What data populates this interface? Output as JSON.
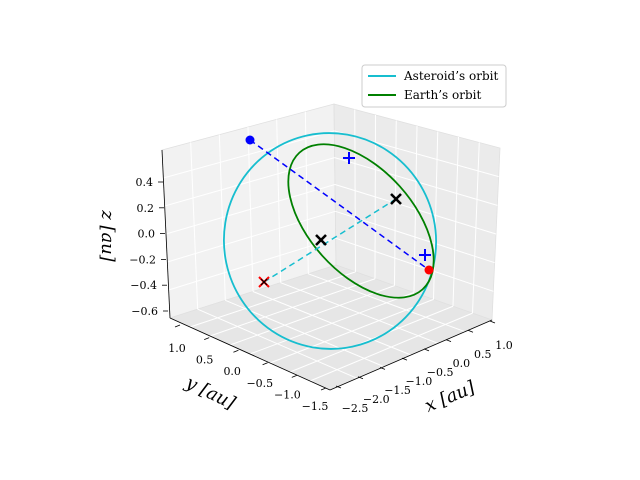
{
  "chart_data": {
    "type": "line",
    "projection": "3d",
    "xlabel": "x [au]",
    "ylabel": "y [au]",
    "zlabel": "z [au]",
    "xlim": [
      -2.6,
      1.2
    ],
    "ylim": [
      -1.6,
      1.3
    ],
    "zlim": [
      -0.7,
      0.55
    ],
    "x_ticks": [
      "−2.5",
      "−2.0",
      "−1.5",
      "−1.0",
      "−0.5",
      "0.0",
      "0.5",
      "1.0"
    ],
    "y_ticks": [
      "−1.5",
      "−1.0",
      "−0.5",
      "0.0",
      "0.5",
      "1.0"
    ],
    "z_ticks": [
      "−0.6",
      "−0.4",
      "−0.2",
      "0.0",
      "0.2",
      "0.4"
    ],
    "grid": true,
    "legend_position": "top-right",
    "series": [
      {
        "name": "Asteroid’s orbit",
        "color": "#17becf",
        "style": "solid",
        "kind": "ellipse"
      },
      {
        "name": "Earth’s orbit",
        "color": "#008000",
        "style": "solid",
        "kind": "ellipse"
      }
    ],
    "dashed_lines": [
      {
        "color": "#0000ff",
        "style": "dashed",
        "from_marker": "asteroid-blue-dot",
        "to_marker": "asteroid-red-dot"
      },
      {
        "color": "#17becf",
        "style": "dashed",
        "from_marker": "asteroid-node-red-x",
        "to_marker": "earth-node-x-right"
      }
    ],
    "markers": [
      {
        "id": "asteroid-blue-dot",
        "shape": "circle",
        "color": "#0000ff"
      },
      {
        "id": "asteroid-red-dot",
        "shape": "circle",
        "color": "#ff0000"
      },
      {
        "id": "earth-plus-top",
        "shape": "plus",
        "color": "#0000ff"
      },
      {
        "id": "earth-plus-right",
        "shape": "plus",
        "color": "#0000ff"
      },
      {
        "id": "asteroid-node-red-x",
        "shape": "x",
        "color": "#ff0000"
      },
      {
        "id": "earth-node-x-left",
        "shape": "x",
        "color": "#000000"
      },
      {
        "id": "earth-node-x-right",
        "shape": "x",
        "color": "#000000"
      }
    ]
  }
}
